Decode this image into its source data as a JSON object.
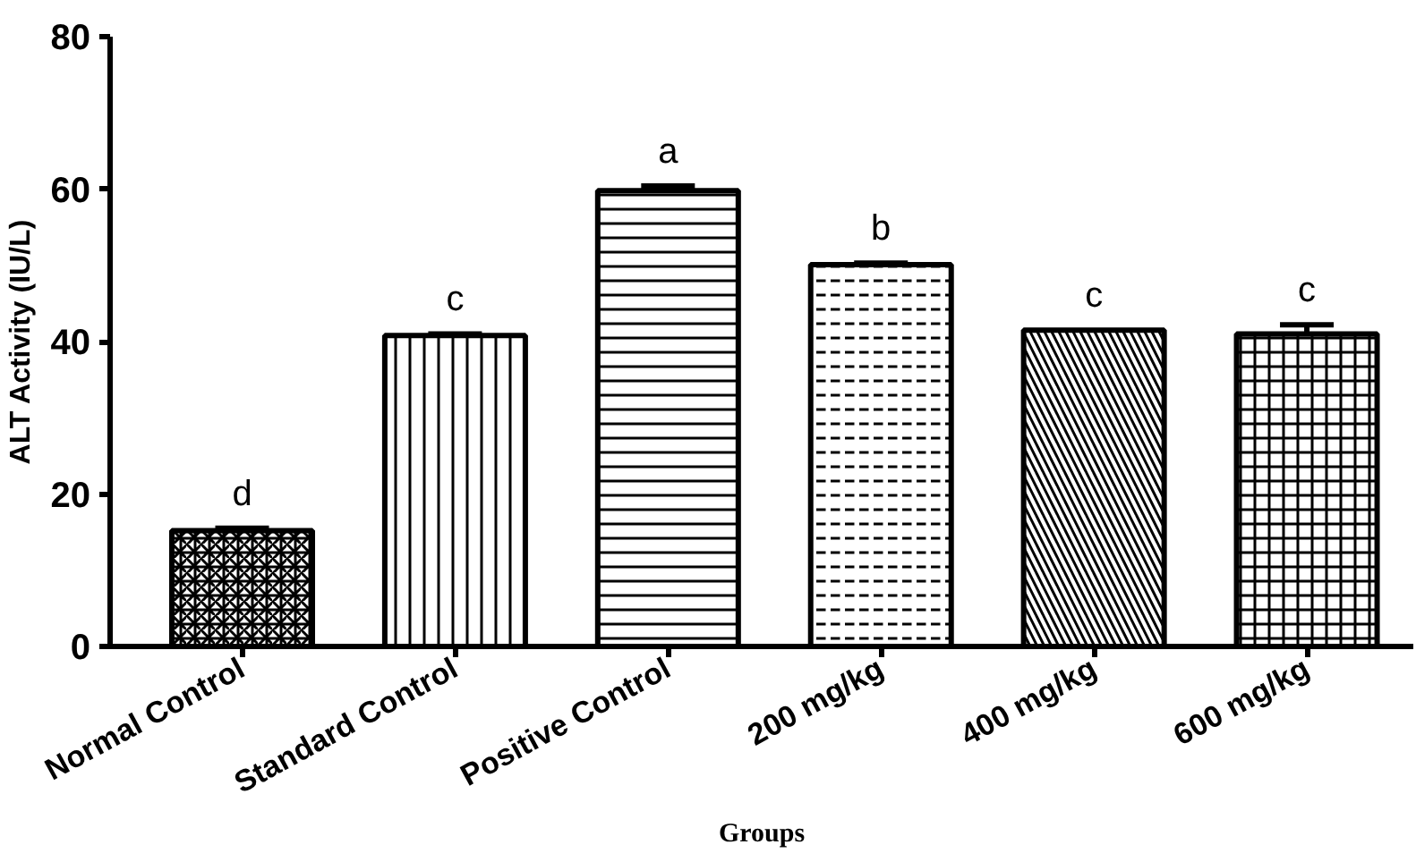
{
  "chart_data": {
    "type": "bar",
    "xlabel": "Groups",
    "ylabel": "ALT Activity (IU/L)",
    "categories": [
      "Normal Control",
      "Standard Control",
      "Positive Control",
      "200 mg/kg",
      "400 mg/kg",
      "600 mg/kg"
    ],
    "values": [
      15.2,
      40.8,
      59.8,
      50.1,
      41.5,
      41.0
    ],
    "errors": [
      0.3,
      0.2,
      0.6,
      0.2,
      null,
      1.2
    ],
    "colors": [
      "#000000",
      "#000000",
      "#000000",
      "#000000",
      "#000000",
      "#000000"
    ],
    "ylim": [
      0,
      80
    ],
    "yticks": [
      0,
      20,
      40,
      60,
      80
    ],
    "grid": false,
    "annotations": [
      {
        "text": "d",
        "x": "Normal Control",
        "y": 15.5
      },
      {
        "text": "c",
        "x": "Standard Control",
        "y": 41
      },
      {
        "text": "a",
        "x": "Positive Control",
        "y": 60.4
      },
      {
        "text": "b",
        "x": "200 mg/kg",
        "y": 50.3
      },
      {
        "text": "c",
        "x": "400 mg/kg",
        "y": 41.5
      },
      {
        "text": "c",
        "x": "600 mg/kg",
        "y": 42.2
      }
    ]
  }
}
